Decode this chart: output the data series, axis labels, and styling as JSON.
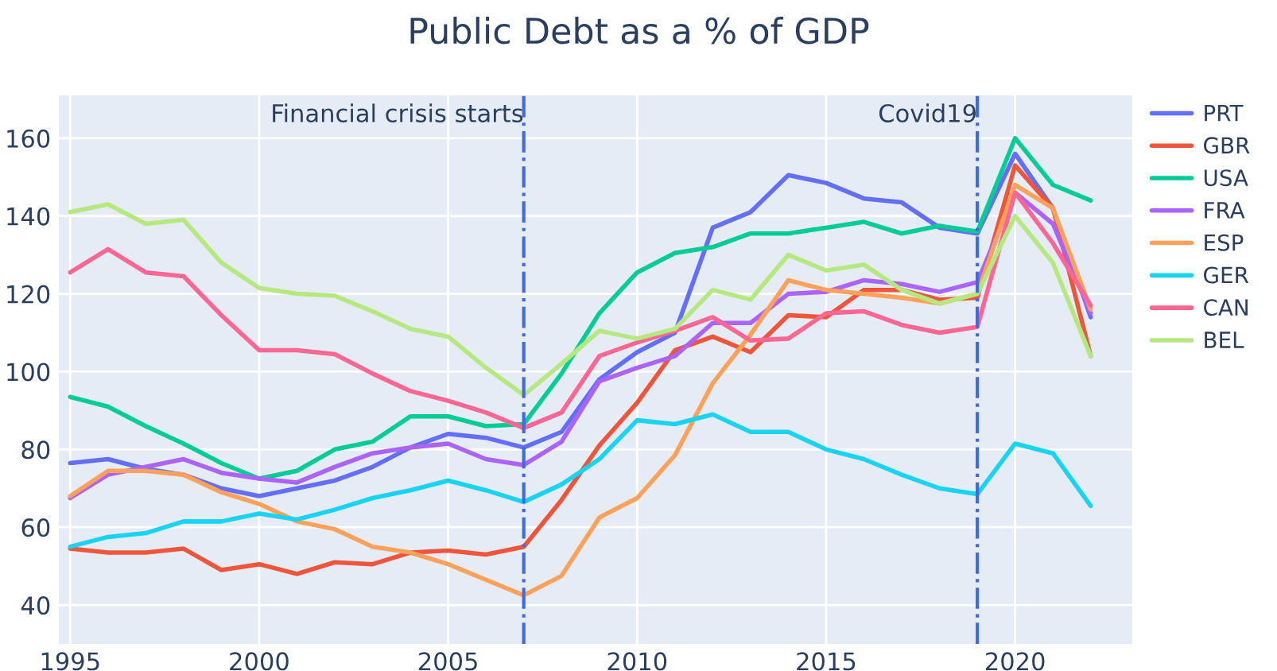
{
  "chart_data": {
    "type": "line",
    "title": "Public Debt as a % of GDP",
    "x": [
      1995,
      1996,
      1997,
      1998,
      1999,
      2000,
      2001,
      2002,
      2003,
      2004,
      2005,
      2006,
      2007,
      2008,
      2009,
      2010,
      2011,
      2012,
      2013,
      2014,
      2015,
      2016,
      2017,
      2018,
      2019,
      2020,
      2021,
      2022
    ],
    "series": [
      {
        "name": "PRT",
        "color": "#636efa",
        "values": [
          76.5,
          77.5,
          75,
          73.5,
          70,
          68,
          70,
          72,
          75.5,
          80.5,
          84,
          83,
          80.5,
          84.5,
          98,
          105,
          110,
          137,
          141,
          150.5,
          148.5,
          144.5,
          143.5,
          137,
          135.5,
          156,
          142,
          114
        ]
      },
      {
        "name": "GBR",
        "color": "#ef553b",
        "values": [
          54.5,
          53.5,
          53.5,
          54.5,
          49,
          50.5,
          48,
          51,
          50.5,
          53.5,
          54,
          53,
          55,
          67,
          81,
          92,
          105.5,
          109,
          105,
          114.5,
          114,
          121,
          121,
          118.5,
          119,
          153,
          142,
          104
        ]
      },
      {
        "name": "USA",
        "color": "#00cc96",
        "values": [
          93.5,
          91,
          86,
          81.5,
          76.5,
          72.5,
          74.5,
          80,
          82,
          88.5,
          88.5,
          86,
          86.5,
          99.5,
          115,
          125.5,
          130.5,
          132,
          135.5,
          135.5,
          137,
          138.5,
          135.5,
          137.5,
          136,
          160,
          148,
          144
        ]
      },
      {
        "name": "FRA",
        "color": "#ab63fa",
        "values": [
          67.5,
          73.5,
          75.5,
          77.5,
          74,
          72.5,
          71.5,
          75.5,
          79,
          80.5,
          81.5,
          77.5,
          76,
          82,
          97.5,
          101,
          104,
          112.5,
          112.5,
          120,
          120.5,
          123.5,
          122.5,
          120.5,
          123,
          146,
          138,
          115
        ]
      },
      {
        "name": "ESP",
        "color": "#ffa15a",
        "values": [
          68,
          74.5,
          74.5,
          73.5,
          69,
          66,
          61.5,
          59.5,
          55,
          53.5,
          50.5,
          46.5,
          42.5,
          47.5,
          62.5,
          67.5,
          78.5,
          97,
          109.5,
          123.5,
          121,
          120,
          119,
          117.5,
          120,
          148,
          142,
          116
        ]
      },
      {
        "name": "GER",
        "color": "#19d3f3",
        "values": [
          55,
          57.5,
          58.5,
          61.5,
          61.5,
          63.5,
          62,
          64.5,
          67.5,
          69.5,
          72,
          69.5,
          66.5,
          71,
          77.5,
          87.5,
          86.5,
          89,
          84.5,
          84.5,
          80,
          77.5,
          73.5,
          70,
          68.5,
          81.5,
          79,
          65.5
        ]
      },
      {
        "name": "CAN",
        "color": "#ff6692",
        "values": [
          125.5,
          131.5,
          125.5,
          124.5,
          114.5,
          105.5,
          105.5,
          104.5,
          99.5,
          95,
          92.5,
          89.5,
          85.5,
          89.5,
          104,
          107.5,
          110.5,
          114,
          108,
          108.5,
          115,
          115.5,
          112,
          110,
          111.5,
          146,
          133,
          117
        ]
      },
      {
        "name": "BEL",
        "color": "#b6e880",
        "values": [
          141,
          143,
          138,
          139,
          128,
          121.5,
          120,
          119.5,
          115.5,
          111,
          109,
          101,
          94,
          102,
          110.5,
          108.5,
          111,
          121,
          118.5,
          130,
          126,
          127.5,
          121,
          117.5,
          120,
          140,
          128,
          104
        ]
      }
    ],
    "xlim": [
      1994.7,
      2023.1
    ],
    "ylim": [
      30,
      171
    ],
    "xticks": [
      1995,
      2000,
      2005,
      2010,
      2015,
      2020
    ],
    "yticks": [
      40,
      60,
      80,
      100,
      120,
      140,
      160
    ],
    "ref_lines": [
      {
        "axis": "x",
        "value": 2007,
        "label": "Financial crisis starts",
        "color": "#4169e1",
        "line_style": "dashdot"
      },
      {
        "axis": "x",
        "value": 2019,
        "label": "Covid19",
        "color": "#4169e1",
        "line_style": "dashdot"
      }
    ],
    "grid": true,
    "legend": "right",
    "marker": "none",
    "line_style": "solid"
  }
}
